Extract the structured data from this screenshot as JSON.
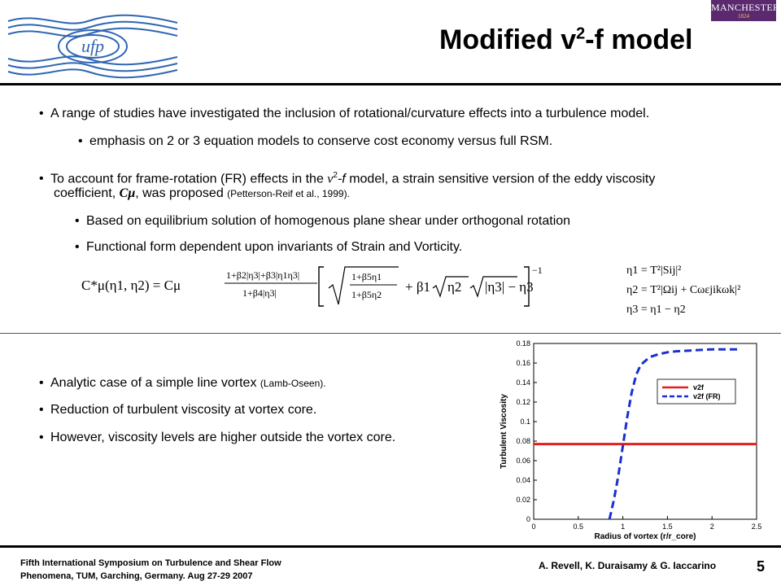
{
  "header": {
    "title_main": "Modified v",
    "title_sup": "2",
    "title_end": "-f model",
    "logo_text": "ufp",
    "brand_name": "MANCHESTER",
    "brand_year": "1824",
    "colors": {
      "brand_purple": "#5b2a6e",
      "logo_blue": "#2f66b3"
    }
  },
  "bullets": {
    "b1": "A range of studies have investigated the inclusion of rotational/curvature effects into a turbulence model.",
    "b1_sub": "emphasis on 2 or 3 equation models to conserve cost economy versus full RSM.",
    "b2_pre": "To account for frame-rotation (FR) effects in the ",
    "b2_v": "v",
    "b2_sup": "2",
    "b2_f": "-f",
    "b2_post": " model, a strain sensitive version of the eddy viscosity",
    "b2_line2_pre": "coefficient, ",
    "b2_cmu": "Cμ",
    "b2_line2_post": ", was proposed ",
    "b2_cite": "(Petterson-Reif et al., 1999).",
    "b2_sub1": "Based on equilibrium solution of homogenous plane shear under orthogonal rotation",
    "b2_sub2": "Functional form dependent upon invariants of Strain and Vorticity.",
    "b3_pre": "Analytic case of a simple line vortex ",
    "b3_cite": "(Lamb-Oseen).",
    "b4": "Reduction of turbulent viscosity at vortex core.",
    "b5": "However, viscosity levels are higher outside the vortex core."
  },
  "equations": {
    "lhs": "C*μ(η1, η2) = Cμ",
    "numer": "1+β2|η3|+β3|η1η3|",
    "denom": "1+β4|η3|",
    "frac2_num": "1+β5η1",
    "frac2_den": "1+β5η2",
    "beta1": "+ β1",
    "sqrt1": "η2",
    "sqrt2": "|η3| − η3",
    "power": "−1",
    "inv1": "η1 = T²|Sij|²",
    "inv2": "η2 = T²|Ωij + Cωεjikωk|²",
    "inv3": "η3 = η1 − η2"
  },
  "chart_data": {
    "type": "line",
    "xlabel": "Radius of vortex (r/r_core)",
    "ylabel": "Turbulent Viscosity",
    "xlim": [
      0,
      2.5
    ],
    "ylim": [
      0,
      0.18
    ],
    "xticks": [
      0,
      0.5,
      1,
      1.5,
      2,
      2.5
    ],
    "xtick_labels": [
      "0",
      "0.5",
      "1",
      "1.5",
      "2",
      "2.5"
    ],
    "yticks": [
      0,
      0.02,
      0.04,
      0.06,
      0.08,
      0.1,
      0.12,
      0.14,
      0.16,
      0.18
    ],
    "ytick_labels": [
      "0",
      "0.02",
      "0.04",
      "0.06",
      "0.08",
      "0.1",
      "0.12",
      "0.14",
      "0.16",
      "0.18"
    ],
    "legend": "upper-right",
    "series": [
      {
        "name": "v2f",
        "color": "#e02020",
        "style": "solid",
        "x": [
          0,
          2.5
        ],
        "y": [
          0.077,
          0.077
        ]
      },
      {
        "name": "v2f  (FR)",
        "color": "#1a2fd0",
        "style": "dashed",
        "x": [
          0.85,
          0.9,
          0.95,
          1.0,
          1.05,
          1.1,
          1.15,
          1.2,
          1.3,
          1.4,
          1.5,
          1.6,
          1.8,
          2.0,
          2.3
        ],
        "y": [
          0.0,
          0.02,
          0.045,
          0.075,
          0.105,
          0.13,
          0.148,
          0.158,
          0.166,
          0.169,
          0.171,
          0.172,
          0.173,
          0.174,
          0.174
        ]
      }
    ]
  },
  "footer": {
    "left_line1": "Fifth International Symposium on Turbulence and Shear Flow",
    "left_line2": "Phenomena, TUM, Garching, Germany. Aug 27-29 2007",
    "authors": "A. Revell, K. Duraisamy & G. Iaccarino",
    "page_number": "5"
  }
}
